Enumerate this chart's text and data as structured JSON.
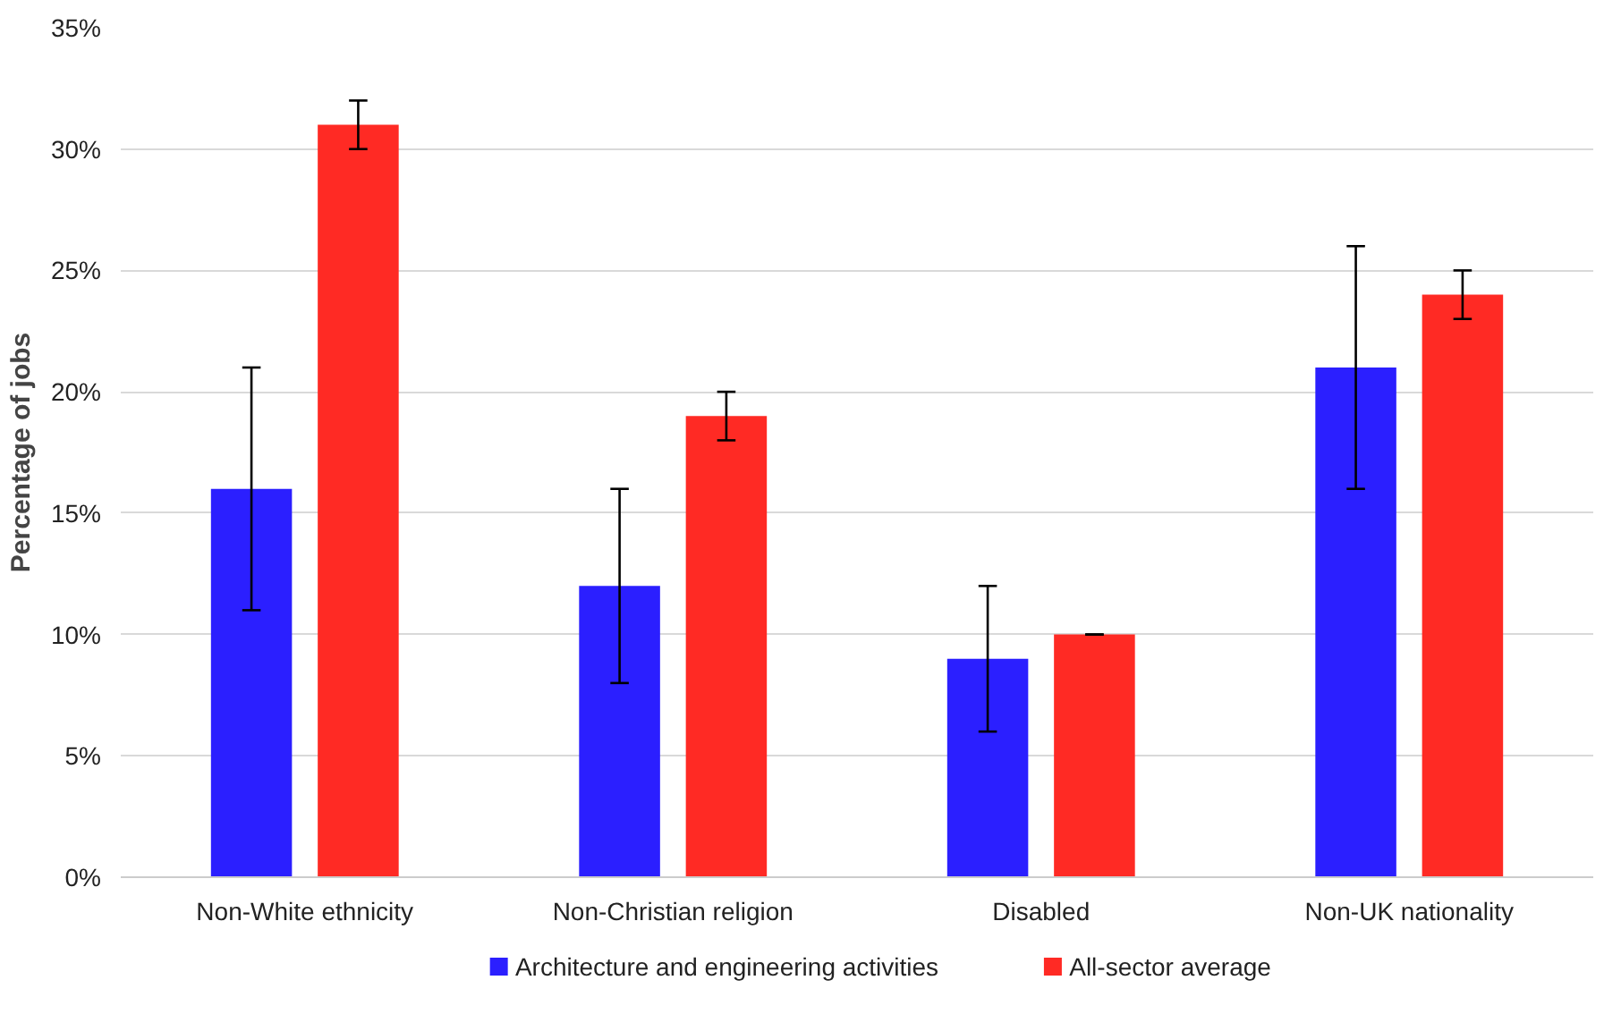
{
  "chart_data": {
    "type": "bar",
    "ylabel": "Percentage of jobs",
    "categories": [
      "Non-White ethnicity",
      "Non-Christian religion",
      "Disabled",
      "Non-UK nationality"
    ],
    "series": [
      {
        "name": "Architecture and engineering activities",
        "color": "#2b1fff",
        "values": [
          16,
          12,
          9,
          21
        ],
        "errors": [
          5,
          4,
          3,
          5
        ]
      },
      {
        "name": "All-sector average",
        "color": "#ff2a24",
        "values": [
          31,
          19,
          10,
          24
        ],
        "errors": [
          1,
          1,
          0,
          1
        ]
      }
    ],
    "ylim": [
      0,
      35
    ],
    "yticks": [
      {
        "value": 0,
        "label": "0%"
      },
      {
        "value": 5,
        "label": "5%"
      },
      {
        "value": 10,
        "label": "10%"
      },
      {
        "value": 15,
        "label": "15%"
      },
      {
        "value": 20,
        "label": "20%"
      },
      {
        "value": 25,
        "label": "25%"
      },
      {
        "value": 30,
        "label": "30%"
      },
      {
        "value": 35,
        "label": "35%"
      }
    ],
    "grid": "y",
    "legend": "bottom"
  }
}
